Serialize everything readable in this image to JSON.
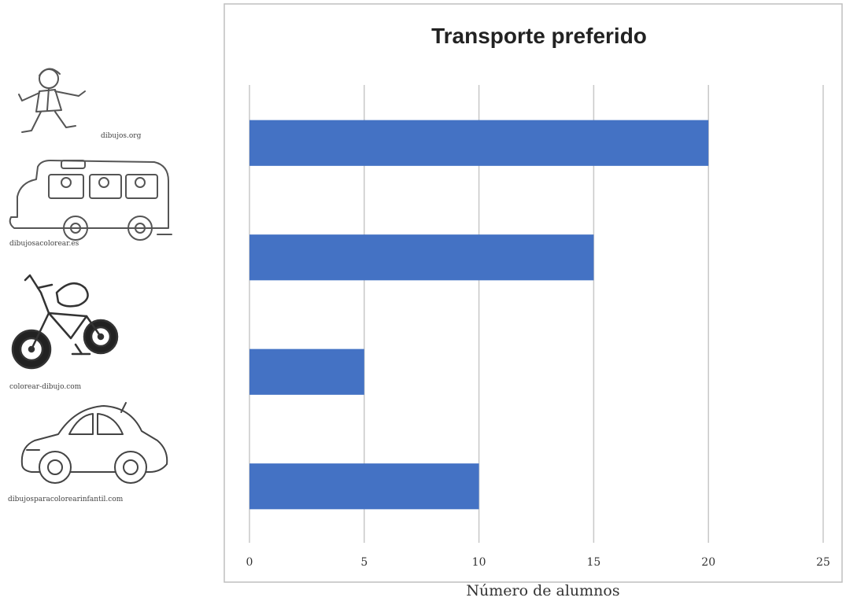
{
  "chart_data": {
    "type": "bar",
    "orientation": "horizontal",
    "title": "Transporte preferido",
    "xlabel": "Número de alumnos",
    "ylabel": "",
    "categories": [
      "Andando",
      "Autobús",
      "Bicicleta",
      "Coche"
    ],
    "values": [
      20,
      15,
      5,
      10
    ],
    "xlim": [
      0,
      25
    ],
    "xticks": [
      0,
      5,
      10,
      15,
      20,
      25
    ],
    "grid": "vertical",
    "legend": "none",
    "bar_color": "#4472c4"
  },
  "pictures": [
    {
      "icon": "walking-child-icon",
      "credit": "dibujos.org"
    },
    {
      "icon": "bus-icon",
      "credit": "dibujosacolorear.es"
    },
    {
      "icon": "bicycle-icon",
      "credit": "colorear-dibujo.com"
    },
    {
      "icon": "car-icon",
      "credit": "dibujosparacolorearinfantil.com"
    }
  ],
  "colors": {
    "bar": "#4472c4",
    "grid": "#c8c8c8",
    "frame": "#bfbfbf",
    "text": "#333333"
  }
}
